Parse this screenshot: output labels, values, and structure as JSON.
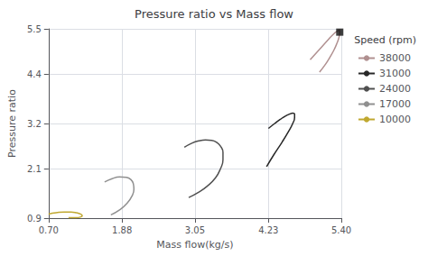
{
  "chart_data": {
    "type": "line",
    "title": "Pressure ratio vs Mass flow",
    "xlabel": "Mass flow(kg/s)",
    "ylabel": "Pressure ratio",
    "legend_title": "Speed (rpm)",
    "legend": "right",
    "grid": true,
    "xlim": [
      0.7,
      5.4
    ],
    "ylim": [
      0.9,
      5.5
    ],
    "xticks": [
      {
        "value": 0.7,
        "label": "0.70"
      },
      1.88,
      3.05,
      4.23,
      {
        "value": 5.4,
        "label": "5.40"
      }
    ],
    "yticks": [
      0.9,
      2.1,
      3.2,
      4.4,
      5.5
    ],
    "series": [
      {
        "name": "38000",
        "color": "#b09090",
        "x": [
          5.05,
          5.15,
          5.22,
          5.28,
          5.33,
          5.36,
          5.375,
          5.37,
          5.35,
          5.28,
          5.18,
          5.05,
          4.9
        ],
        "values": [
          4.45,
          4.65,
          4.82,
          4.98,
          5.15,
          5.28,
          5.42,
          5.48,
          5.46,
          5.38,
          5.22,
          5.0,
          4.75
        ]
      },
      {
        "name": "31000",
        "color": "#282828",
        "x": [
          4.23,
          4.33,
          4.42,
          4.5,
          4.57,
          4.62,
          4.65,
          4.65,
          4.62,
          4.55,
          4.45,
          4.32,
          4.2
        ],
        "values": [
          3.08,
          3.2,
          3.3,
          3.38,
          3.43,
          3.45,
          3.43,
          3.35,
          3.2,
          3.0,
          2.75,
          2.45,
          2.15
        ]
      },
      {
        "name": "24000",
        "color": "#505050",
        "x": [
          2.88,
          3.0,
          3.12,
          3.22,
          3.32,
          3.4,
          3.46,
          3.5,
          3.5,
          3.46,
          3.38,
          3.25,
          3.1,
          2.95
        ],
        "values": [
          2.62,
          2.72,
          2.78,
          2.8,
          2.79,
          2.74,
          2.65,
          2.5,
          2.32,
          2.1,
          1.88,
          1.68,
          1.52,
          1.4
        ]
      },
      {
        "name": "17000",
        "color": "#909090",
        "x": [
          1.6,
          1.72,
          1.84,
          1.95,
          2.02,
          2.06,
          2.07,
          2.04,
          1.96,
          1.84,
          1.7
        ],
        "values": [
          1.78,
          1.86,
          1.9,
          1.89,
          1.84,
          1.74,
          1.6,
          1.44,
          1.26,
          1.1,
          0.98
        ]
      },
      {
        "name": "10000",
        "color": "#c0a830",
        "x": [
          0.7,
          0.82,
          0.95,
          1.06,
          1.15,
          1.21,
          1.24,
          1.22,
          1.14,
          1.02
        ],
        "values": [
          1.0,
          1.03,
          1.05,
          1.05,
          1.03,
          1.0,
          0.96,
          0.93,
          0.91,
          0.91
        ]
      },
      {
        "type": "scatter",
        "marker": "square",
        "color": "#101010",
        "x": [
          5.375
        ],
        "values": [
          5.42
        ]
      }
    ]
  }
}
